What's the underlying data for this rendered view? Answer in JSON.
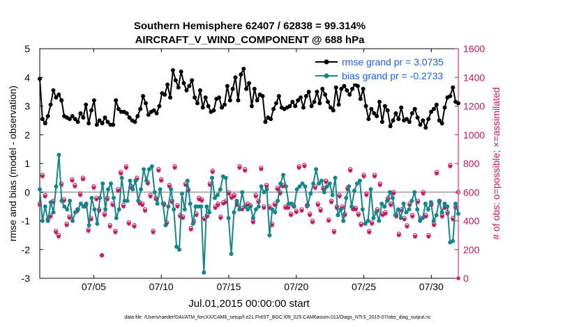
{
  "chart_data": {
    "type": "line",
    "title_line1": "Southern Hemisphere 62407 / 62838 = 99.314%",
    "title_line2": "AIRCRAFT_V_WIND_COMPONENT @ 688 hPa",
    "xlabel": "Jul.01,2015 00:00:00 start",
    "ylabel_left": "rmse and bias (model - observation)",
    "ylabel_right": "# of obs: o=possible; ×=assimilated",
    "footnote": "data file: /Users/raeder/DAI/ATM_forcXX/CAM6_setup/f.e21.FHIST_BGC.f09_025.CAM6assim.011/Diags_NTrS_2015-07/obs_diag_output.nc",
    "x_range": [
      1,
      32
    ],
    "x_ticks": [
      5,
      10,
      15,
      20,
      25,
      30
    ],
    "x_tick_labels": [
      "07/05",
      "07/10",
      "07/15",
      "07/20",
      "07/25",
      "07/30"
    ],
    "ylim_left": [
      -3,
      5
    ],
    "y_ticks_left": [
      "-3",
      "-2",
      "-1",
      "0",
      "1",
      "2",
      "3",
      "4",
      "5"
    ],
    "ylim_right": [
      0,
      1600
    ],
    "y_ticks_right": [
      "0",
      "200",
      "400",
      "600",
      "800",
      "1000",
      "1200",
      "1400",
      "1600"
    ],
    "zero_line": 0,
    "series": [
      {
        "name": "rmse grand pr = 3.0735",
        "axis": "left",
        "color": "#000000",
        "marker": "filled-circle",
        "values": [
          3.95,
          2.55,
          2.4,
          2.65,
          3.05,
          3.55,
          3.3,
          3.4,
          3.2,
          2.65,
          2.6,
          2.55,
          2.65,
          2.55,
          2.45,
          2.75,
          2.6,
          3.05,
          2.4,
          2.85,
          3.2,
          2.35,
          2.5,
          2.4,
          2.6,
          2.45,
          2.35,
          2.35,
          3.2,
          2.9,
          2.8,
          2.8,
          2.75,
          2.6,
          2.5,
          2.45,
          2.65,
          2.9,
          3.35,
          3.1,
          2.7,
          2.8,
          2.85,
          2.75,
          3.0,
          3.45,
          3.4,
          3.75,
          3.3,
          4.25,
          3.9,
          3.65,
          4.2,
          3.8,
          3.55,
          3.7,
          3.9,
          3.3,
          3.1,
          3.55,
          2.95,
          3.3,
          3.0,
          2.8,
          2.85,
          3.25,
          3.3,
          2.95,
          3.05,
          3.7,
          3.2,
          3.6,
          4.0,
          3.2,
          4.1,
          4.3,
          3.6,
          3.8,
          3.0,
          3.6,
          3.2,
          3.4,
          3.35,
          2.45,
          2.6,
          2.55,
          2.9,
          3.1,
          3.35,
          2.95,
          2.9,
          2.95,
          3.0,
          3.15,
          3.0,
          3.2,
          3.3,
          2.95,
          3.35,
          3.5,
          3.0,
          3.15,
          3.5,
          3.1,
          3.6,
          3.4,
          3.15,
          2.95,
          2.85,
          3.65,
          3.05,
          3.6,
          3.7,
          3.55,
          3.4,
          3.6,
          3.75,
          3.7,
          3.25,
          3.6,
          3.0,
          2.55,
          2.9,
          2.75,
          2.65,
          3.15,
          2.45,
          3.0,
          2.85,
          2.3,
          2.5,
          2.75,
          2.55,
          2.95,
          2.5,
          2.55,
          2.45,
          2.75,
          2.9,
          2.6,
          2.35,
          2.5,
          2.25,
          2.55,
          2.8,
          2.9,
          3.05,
          2.5,
          2.4,
          2.95,
          3.3,
          3.35,
          3.65,
          3.15,
          3.1
        ]
      },
      {
        "name": "bias grand pr = -0.2733",
        "axis": "left",
        "color": "#14868b",
        "marker": "filled-circle",
        "values": [
          0.1,
          -1.0,
          -0.5,
          -1.0,
          -0.35,
          -0.7,
          0.2,
          1.3,
          -0.3,
          -0.5,
          -0.6,
          -0.3,
          -1.0,
          -0.7,
          -0.6,
          -0.4,
          -0.5,
          -0.4,
          -1.15,
          -0.2,
          -0.6,
          -1.1,
          -0.2,
          0.3,
          -0.6,
          0.1,
          0.3,
          -0.2,
          -0.9,
          -0.6,
          0.5,
          -0.3,
          -0.3,
          0.4,
          0.1,
          0.4,
          -0.3,
          0.1,
          0.8,
          0.4,
          0.8,
          0.9,
          0.0,
          -0.4,
          0.1,
          -0.4,
          -1.15,
          -0.5,
          0.1,
          -0.6,
          -1.9,
          -2.0,
          -0.05,
          -0.6,
          0.4,
          -0.4,
          -1.1,
          -0.5,
          -0.5,
          -0.5,
          -2.8,
          -0.5,
          -0.7,
          0.5,
          -0.2,
          -0.1,
          0.1,
          0.55,
          0.5,
          -0.9,
          -2.15,
          -0.7,
          -0.3,
          -0.6,
          0.0,
          -0.5,
          -0.6,
          -0.5,
          -0.9,
          -0.6,
          -0.5,
          0.2,
          0.0,
          0.1,
          -1.5,
          -0.6,
          -0.7,
          -0.3,
          0.3,
          0.6,
          0.2,
          -0.4,
          -0.4,
          -0.5,
          0.1,
          0.2,
          0.3,
          0.2,
          -0.45,
          -0.05,
          0.3,
          0.8,
          0.3,
          0.4,
          0.0,
          0.2,
          0.3,
          -0.1,
          0.5,
          -0.8,
          -0.6,
          -1.0,
          -0.2,
          0.2,
          -0.5,
          0.05,
          0.3,
          0.4,
          -0.6,
          -1.1,
          -1.0,
          0.1,
          -0.9,
          -0.7,
          -1.0,
          -0.4,
          -0.5,
          -0.3,
          0.0,
          -0.2,
          -0.8,
          -0.6,
          -0.9,
          -0.4,
          -0.7,
          -0.6,
          -0.3,
          0.0,
          -0.6,
          -1.0,
          -0.9,
          -0.4,
          -0.6,
          -0.35,
          -1.0,
          -0.8,
          -0.3,
          -0.7,
          -0.4,
          -0.5,
          -1.75,
          -1.7,
          -0.4,
          -0.75
        ]
      },
      {
        "name": "# of obs possible",
        "axis": "right",
        "color": "#c7135a",
        "marker": "open-circle",
        "values": [
          520,
          720,
          580,
          410,
          440,
          540,
          330,
          300,
          660,
          550,
          380,
          430,
          690,
          650,
          480,
          590,
          700,
          510,
          340,
          420,
          640,
          560,
          480,
          160,
          450,
          560,
          370,
          520,
          330,
          620,
          740,
          510,
          780,
          390,
          640,
          370,
          700,
          530,
          520,
          480,
          670,
          580,
          330,
          560,
          760,
          690,
          520,
          390,
          650,
          540,
          780,
          510,
          440,
          430,
          660,
          620,
          350,
          400,
          450,
          560,
          550,
          420,
          440,
          660,
          750,
          500,
          520,
          430,
          530,
          540,
          600,
          570,
          580,
          520,
          780,
          490,
          760,
          520,
          510,
          400,
          580,
          540,
          770,
          500,
          650,
          500,
          380,
          520,
          630,
          600,
          650,
          500,
          500,
          450,
          510,
          470,
          780,
          480,
          790,
          510,
          450,
          400,
          640,
          520,
          480,
          630,
          680,
          410,
          540,
          330,
          500,
          580,
          500,
          450,
          630,
          760,
          490,
          490,
          450,
          380,
          720,
          590,
          330,
          390,
          720,
          480,
          660,
          450,
          460,
          560,
          520,
          600,
          440,
          310,
          480,
          420,
          370,
          520,
          440,
          300,
          540,
          420,
          600,
          440,
          300,
          520,
          380,
          740,
          540,
          440,
          500,
          460,
          790,
          420,
          500,
          600
        ]
      },
      {
        "name": "# of obs assimilated",
        "axis": "right",
        "color": "#c7135a",
        "marker": "asterisk",
        "values": [
          510,
          710,
          570,
          410,
          430,
          530,
          320,
          290,
          650,
          540,
          370,
          420,
          680,
          640,
          470,
          580,
          690,
          500,
          330,
          410,
          630,
          550,
          470,
          160,
          440,
          550,
          360,
          510,
          320,
          610,
          730,
          500,
          770,
          380,
          630,
          360,
          690,
          520,
          510,
          470,
          660,
          570,
          320,
          550,
          750,
          680,
          510,
          380,
          640,
          530,
          770,
          500,
          430,
          420,
          650,
          610,
          340,
          390,
          440,
          550,
          540,
          410,
          430,
          650,
          740,
          490,
          510,
          420,
          520,
          530,
          590,
          560,
          570,
          510,
          770,
          480,
          750,
          510,
          500,
          390,
          570,
          530,
          760,
          490,
          640,
          490,
          370,
          510,
          620,
          590,
          640,
          490,
          490,
          440,
          500,
          460,
          770,
          470,
          780,
          500,
          440,
          390,
          630,
          510,
          470,
          620,
          670,
          400,
          530,
          320,
          490,
          570,
          490,
          440,
          620,
          750,
          480,
          480,
          440,
          370,
          710,
          580,
          320,
          380,
          710,
          470,
          650,
          440,
          450,
          550,
          510,
          590,
          430,
          300,
          470,
          410,
          360,
          510,
          430,
          290,
          530,
          410,
          590,
          430,
          290,
          510,
          370,
          730,
          530,
          430,
          490,
          450,
          780,
          410,
          490,
          0
        ]
      }
    ],
    "legend": {
      "position": "top-right",
      "entries": [
        "rmse grand pr = 3.0735",
        "bias grand pr = -0.2733"
      ]
    }
  }
}
